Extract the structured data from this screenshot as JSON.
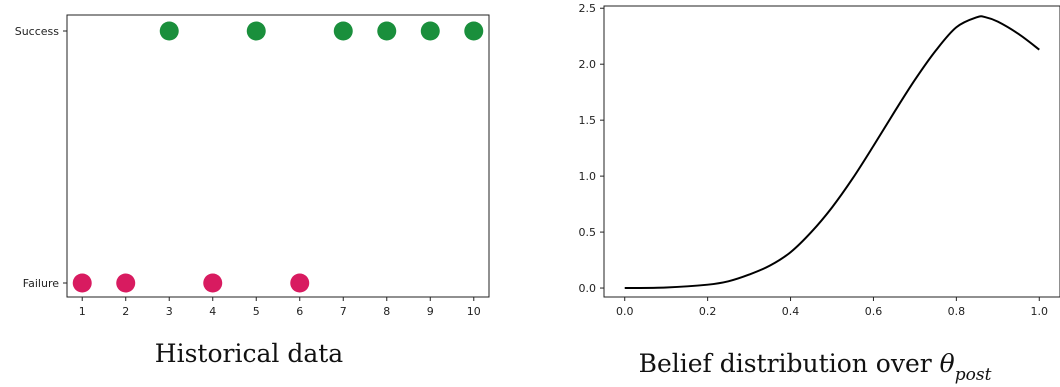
{
  "chart_data": [
    {
      "type": "scatter",
      "title": "Historical data",
      "xlabel": "",
      "ylabel": "",
      "x_ticks": [
        1,
        2,
        3,
        4,
        5,
        6,
        7,
        8,
        9,
        10
      ],
      "y_categories": [
        "Failure",
        "Success"
      ],
      "points": [
        {
          "x": 1,
          "y": "Failure"
        },
        {
          "x": 2,
          "y": "Failure"
        },
        {
          "x": 3,
          "y": "Success"
        },
        {
          "x": 4,
          "y": "Failure"
        },
        {
          "x": 5,
          "y": "Success"
        },
        {
          "x": 6,
          "y": "Failure"
        },
        {
          "x": 7,
          "y": "Success"
        },
        {
          "x": 8,
          "y": "Success"
        },
        {
          "x": 9,
          "y": "Success"
        },
        {
          "x": 10,
          "y": "Success"
        }
      ],
      "colors": {
        "Success": "#1a8f3c",
        "Failure": "#d81b60"
      },
      "xlim": [
        0.65,
        10.35
      ],
      "grid": false
    },
    {
      "type": "line",
      "title_text": "Belief distribution over ",
      "title_symbol": "θ",
      "title_subscript": "post",
      "xlabel": "",
      "ylabel": "",
      "x_ticks": [
        0.0,
        0.2,
        0.4,
        0.6,
        0.8,
        1.0
      ],
      "x_tick_labels": [
        "0.0",
        "0.2",
        "0.4",
        "0.6",
        "0.8",
        "1.0"
      ],
      "y_ticks": [
        0.0,
        0.5,
        1.0,
        1.5,
        2.0,
        2.5
      ],
      "y_tick_labels": [
        "0.0",
        "0.5",
        "1.0",
        "1.5",
        "2.0",
        "2.5"
      ],
      "xlim": [
        -0.05,
        1.05
      ],
      "ylim": [
        -0.08,
        2.52
      ],
      "series": [
        {
          "x": [
            0.0,
            0.1,
            0.2,
            0.25,
            0.3,
            0.35,
            0.4,
            0.45,
            0.5,
            0.55,
            0.6,
            0.65,
            0.7,
            0.75,
            0.8,
            0.85,
            0.87,
            0.9,
            0.95,
            1.0
          ],
          "y": [
            0.0,
            0.005,
            0.03,
            0.06,
            0.12,
            0.2,
            0.32,
            0.5,
            0.72,
            0.98,
            1.27,
            1.57,
            1.86,
            2.12,
            2.33,
            2.42,
            2.42,
            2.38,
            2.27,
            2.13
          ],
          "color": "#000000"
        }
      ],
      "grid": false
    }
  ]
}
